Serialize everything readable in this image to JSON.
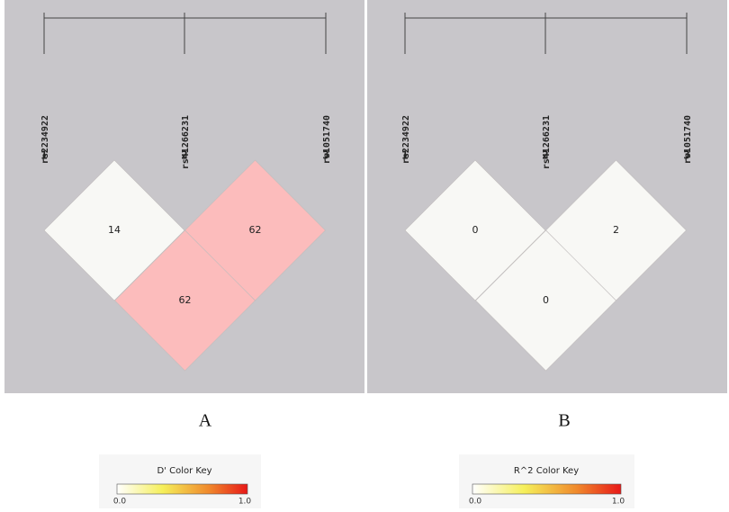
{
  "panels": [
    {
      "label": "A",
      "snps": [
        {
          "index": "1",
          "name": "rs2234922"
        },
        {
          "index": "2",
          "name": "rs41266231"
        },
        {
          "index": "3",
          "name": "rs1051740"
        }
      ],
      "cells": [
        {
          "value": "14",
          "color": "#f8f8f5"
        },
        {
          "value": "62",
          "color": "#fcbcbc"
        },
        {
          "value": "62",
          "color": "#fcbcbc"
        }
      ]
    },
    {
      "label": "B",
      "snps": [
        {
          "index": "1",
          "name": "rs2234922"
        },
        {
          "index": "2",
          "name": "rs41266231"
        },
        {
          "index": "3",
          "name": "rs1051740"
        }
      ],
      "cells": [
        {
          "value": "0",
          "color": "#f8f8f5"
        },
        {
          "value": "2",
          "color": "#f8f8f5"
        },
        {
          "value": "0",
          "color": "#f8f8f5"
        }
      ]
    }
  ],
  "color_keys": [
    {
      "title": "D' Color Key",
      "min_label": "0.0",
      "max_label": "1.0"
    },
    {
      "title": "R^2 Color Key",
      "min_label": "0.0",
      "max_label": "1.0"
    }
  ]
}
